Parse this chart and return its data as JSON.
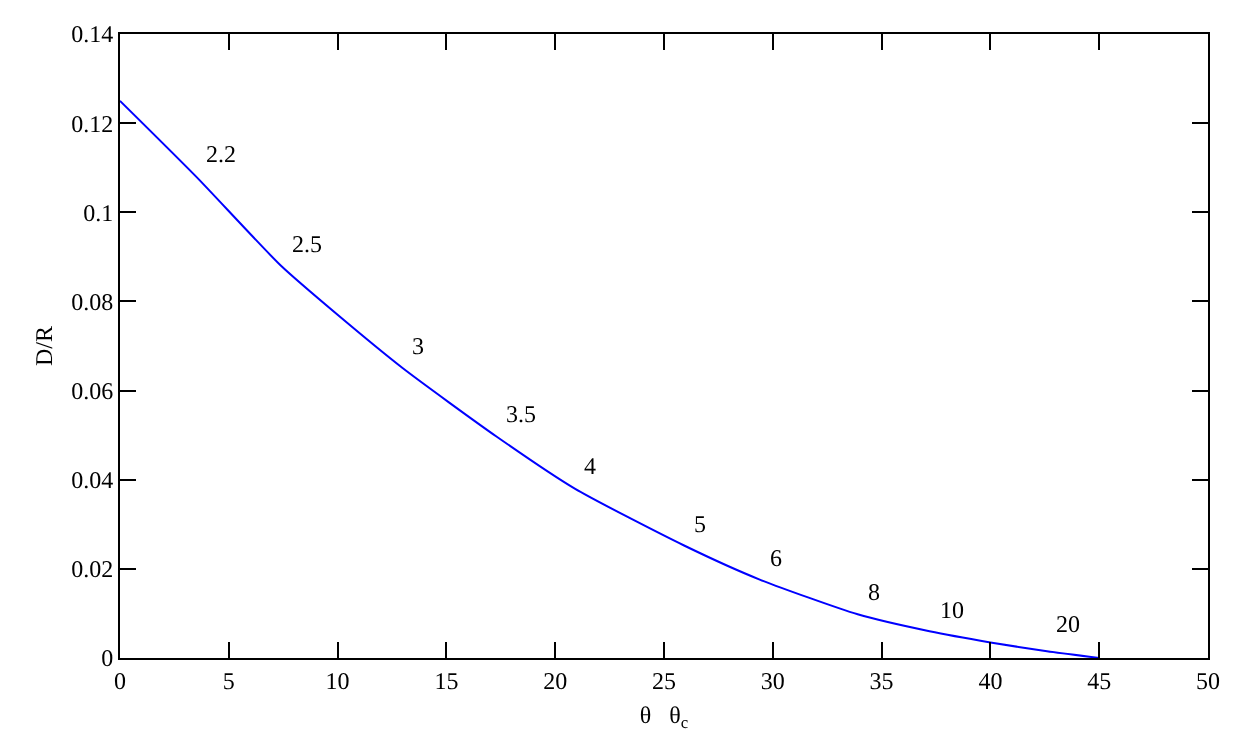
{
  "chart_data": {
    "type": "line",
    "xlabel": "θ   θ$_{c}$",
    "ylabel": "D/R",
    "x": [
      0,
      3.5,
      7.4,
      10,
      13,
      17.3,
      20.9,
      25.9,
      29.4,
      33.9,
      37.2,
      40,
      42.6,
      45
    ],
    "series": [
      {
        "color": "#0000ff",
        "values": [
          0.125,
          0.108,
          0.088,
          0.077,
          0.065,
          0.0497,
          0.038,
          0.0253,
          0.0176,
          0.0098,
          0.006,
          0.0035,
          0.0015,
          0
        ]
      }
    ],
    "annotations": [
      {
        "text": "2.2",
        "x": 3.5,
        "y": 0.108
      },
      {
        "text": "2.5",
        "x": 7.4,
        "y": 0.088
      },
      {
        "text": "3",
        "x": 13,
        "y": 0.065
      },
      {
        "text": "3.5",
        "x": 17.3,
        "y": 0.0497
      },
      {
        "text": "4",
        "x": 20.9,
        "y": 0.038
      },
      {
        "text": "5",
        "x": 25.9,
        "y": 0.0253
      },
      {
        "text": "6",
        "x": 29.4,
        "y": 0.0176
      },
      {
        "text": "8",
        "x": 33.9,
        "y": 0.0098
      },
      {
        "text": "10",
        "x": 37.2,
        "y": 0.006
      },
      {
        "text": "20",
        "x": 42.6,
        "y": 0.0026
      }
    ],
    "xlim": [
      0,
      50
    ],
    "xticks": [
      0,
      5,
      10,
      15,
      20,
      25,
      30,
      35,
      40,
      45,
      50
    ],
    "ylim": [
      0,
      0.14
    ],
    "yticks": [
      0,
      0.02,
      0.04,
      0.06,
      0.08,
      0.1,
      0.12,
      0.14
    ],
    "marker": "none",
    "line_style": "solid"
  }
}
